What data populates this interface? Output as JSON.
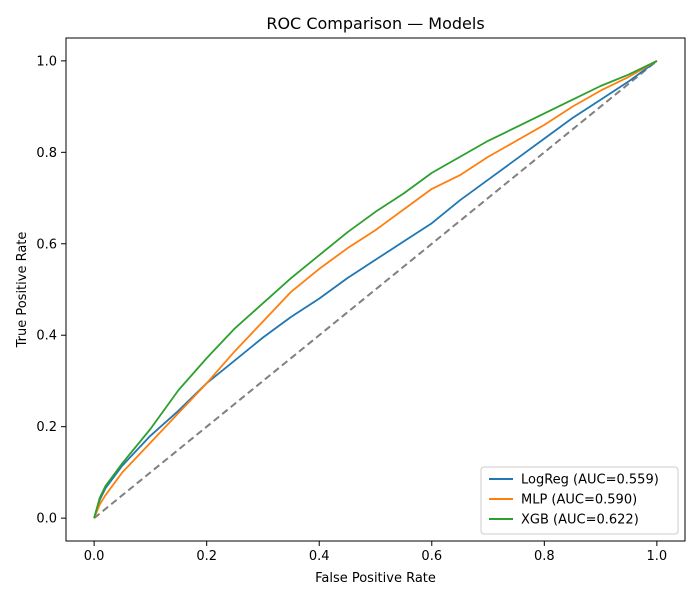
{
  "chart_data": {
    "type": "line",
    "title": "ROC Comparison — Models",
    "xlabel": "False Positive Rate",
    "ylabel": "True Positive Rate",
    "xlim": [
      -0.05,
      1.05
    ],
    "ylim": [
      -0.05,
      1.05
    ],
    "xticks": [
      "0.0",
      "0.2",
      "0.4",
      "0.6",
      "0.8",
      "1.0"
    ],
    "yticks": [
      "0.0",
      "0.2",
      "0.4",
      "0.6",
      "0.8",
      "1.0"
    ],
    "grid": false,
    "legend_position": "bottom-right",
    "reference_line": {
      "x": [
        0,
        1
      ],
      "y": [
        0,
        1
      ],
      "color": "#808080",
      "style": "dashed"
    },
    "series": [
      {
        "name": "LogReg (AUC=0.559)",
        "color": "#1f77b4",
        "x": [
          0,
          0.01,
          0.02,
          0.05,
          0.1,
          0.15,
          0.2,
          0.25,
          0.3,
          0.35,
          0.4,
          0.45,
          0.5,
          0.55,
          0.6,
          0.65,
          0.7,
          0.75,
          0.8,
          0.85,
          0.9,
          0.95,
          1.0
        ],
        "y": [
          0,
          0.04,
          0.065,
          0.115,
          0.18,
          0.235,
          0.295,
          0.345,
          0.395,
          0.44,
          0.48,
          0.525,
          0.565,
          0.605,
          0.645,
          0.695,
          0.74,
          0.785,
          0.83,
          0.875,
          0.915,
          0.955,
          1.0
        ]
      },
      {
        "name": "MLP (AUC=0.590)",
        "color": "#ff7f0e",
        "x": [
          0,
          0.01,
          0.02,
          0.05,
          0.1,
          0.15,
          0.2,
          0.25,
          0.3,
          0.35,
          0.4,
          0.45,
          0.5,
          0.55,
          0.6,
          0.65,
          0.7,
          0.75,
          0.8,
          0.85,
          0.9,
          0.95,
          1.0
        ],
        "y": [
          0,
          0.03,
          0.05,
          0.1,
          0.165,
          0.23,
          0.295,
          0.365,
          0.43,
          0.495,
          0.545,
          0.59,
          0.63,
          0.675,
          0.72,
          0.75,
          0.79,
          0.825,
          0.86,
          0.9,
          0.935,
          0.965,
          1.0
        ]
      },
      {
        "name": "XGB (AUC=0.622)",
        "color": "#2ca02c",
        "x": [
          0,
          0.01,
          0.02,
          0.05,
          0.1,
          0.15,
          0.2,
          0.25,
          0.3,
          0.35,
          0.4,
          0.45,
          0.5,
          0.55,
          0.6,
          0.65,
          0.7,
          0.75,
          0.8,
          0.85,
          0.9,
          0.95,
          1.0
        ],
        "y": [
          0,
          0.045,
          0.07,
          0.12,
          0.195,
          0.28,
          0.35,
          0.415,
          0.47,
          0.525,
          0.575,
          0.625,
          0.67,
          0.71,
          0.755,
          0.79,
          0.825,
          0.855,
          0.885,
          0.915,
          0.945,
          0.97,
          1.0
        ]
      }
    ]
  }
}
